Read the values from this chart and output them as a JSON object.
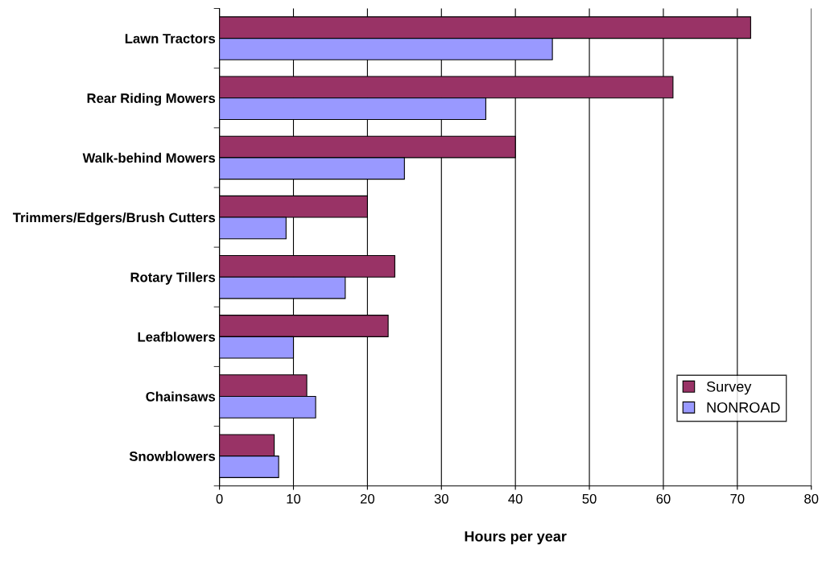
{
  "chart_data": {
    "type": "bar",
    "orientation": "horizontal",
    "xlabel": "Hours per year",
    "categories": [
      "Lawn Tractors",
      "Rear Riding Mowers",
      "Walk-behind Mowers",
      "Trimmers/Edgers/Brush Cutters",
      "Rotary Tillers",
      "Leafblowers",
      "Chainsaws",
      "Snowblowers"
    ],
    "series": [
      {
        "name": "Survey",
        "color": "#993366",
        "values": [
          71.8,
          61.3,
          40,
          20,
          23.7,
          22.8,
          11.8,
          7.4
        ]
      },
      {
        "name": "NONROAD",
        "color": "#9999ff",
        "values": [
          45,
          36,
          25,
          9,
          17,
          10,
          13,
          8
        ]
      }
    ],
    "xlim": [
      0,
      80
    ],
    "xticks": [
      0,
      10,
      20,
      30,
      40,
      50,
      60,
      70,
      80
    ],
    "grid": "x",
    "legend": "bottom right"
  }
}
